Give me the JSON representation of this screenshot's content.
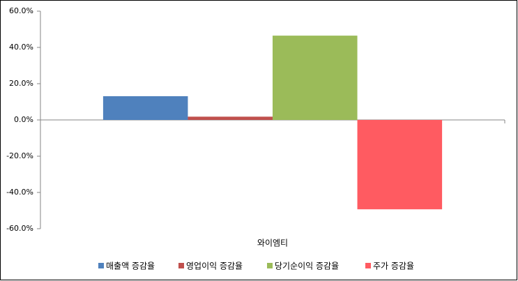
{
  "chart_data": {
    "type": "bar",
    "categories": [
      "와이엠티"
    ],
    "series": [
      {
        "name": "매출액 증감율",
        "color": "#4f81bd",
        "values": [
          13.1
        ]
      },
      {
        "name": "영업이익 증감율",
        "color": "#c0504d",
        "values": [
          1.8
        ]
      },
      {
        "name": "당기순이익 증감율",
        "color": "#9bbb59",
        "values": [
          46.5
        ]
      },
      {
        "name": "주가 증감율",
        "color": "#ff5b61",
        "values": [
          -49.3
        ]
      }
    ],
    "ylim": [
      -60,
      60
    ],
    "yticks": [
      {
        "value": -60,
        "label": "-60.0%"
      },
      {
        "value": -40,
        "label": "-40.0%"
      },
      {
        "value": -20,
        "label": "-20.0%"
      },
      {
        "value": 0,
        "label": "0.0%"
      },
      {
        "value": 20,
        "label": "20.0%"
      },
      {
        "value": 40,
        "label": "40.0%"
      },
      {
        "value": 60,
        "label": "60.0%"
      }
    ],
    "grid": false,
    "legend": "bottom"
  }
}
